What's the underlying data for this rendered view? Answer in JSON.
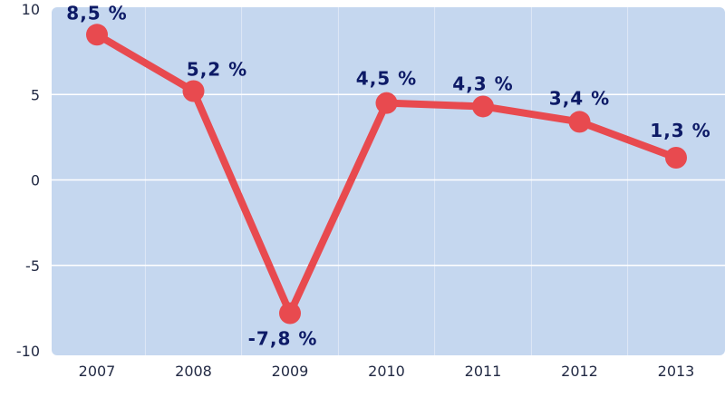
{
  "chart_data": {
    "type": "line",
    "categories": [
      "2007",
      "2008",
      "2009",
      "2010",
      "2011",
      "2012",
      "2013"
    ],
    "series": [
      {
        "values": [
          8.5,
          5.2,
          -7.8,
          4.5,
          4.3,
          3.4,
          1.3
        ]
      }
    ],
    "data_labels": [
      "8,5 %",
      "5,2 %",
      "-7,8 %",
      "4,5 %",
      "4,3 %",
      "3,4 %",
      "1,3 %"
    ],
    "y_ticks": [
      10,
      5,
      0,
      -5,
      -10
    ],
    "y_tick_labels": [
      "10",
      "5",
      "0",
      "-5",
      "-10"
    ],
    "ylim": [
      -10,
      10
    ],
    "grid": true,
    "colors": {
      "plot_background": "#c5d7ef",
      "line": "#e84a4f",
      "data_label": "#0d1a66",
      "grid": "#ffffff"
    }
  }
}
